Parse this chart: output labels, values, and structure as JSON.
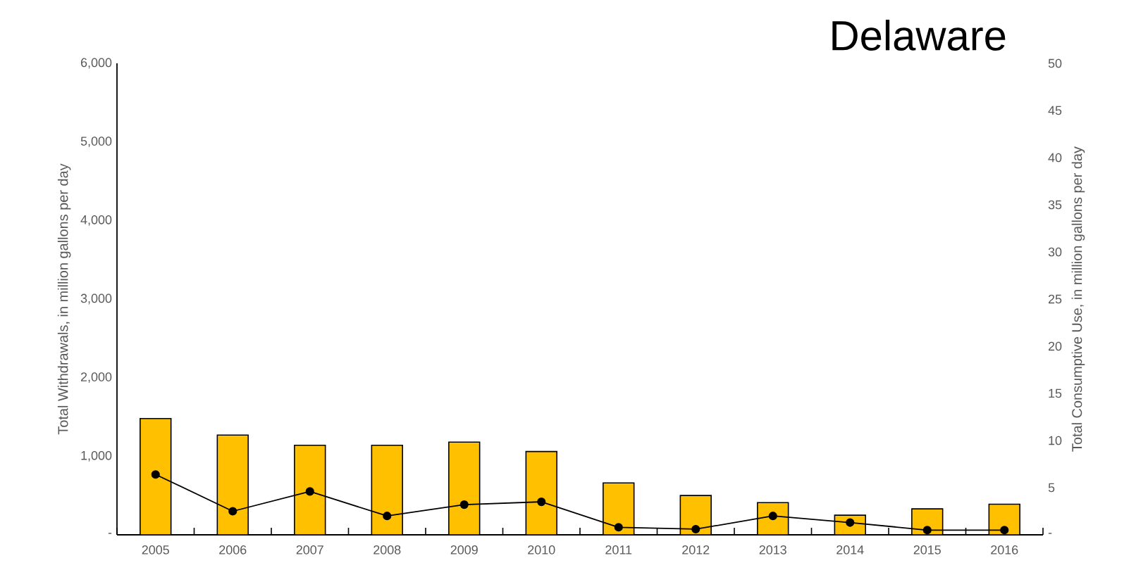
{
  "chart_data": {
    "type": "bar",
    "title": "Delaware",
    "ylabel": "Total Withdrawals, in million gallons per day",
    "y2label": "Total Consumptive Use, in million gallons per day",
    "categories": [
      "2005",
      "2006",
      "2007",
      "2008",
      "2009",
      "2010",
      "2011",
      "2012",
      "2013",
      "2014",
      "2015",
      "2016"
    ],
    "series": [
      {
        "color": "#ffc000",
        "values": [
          1480,
          1270,
          1140,
          1140,
          1180,
          1060,
          660,
          500,
          410,
          250,
          330,
          390
        ]
      },
      {
        "type": "line",
        "axis": "y2",
        "color": "#000000",
        "marker": "circle",
        "values": [
          6.4,
          2.5,
          4.6,
          2.0,
          3.2,
          3.5,
          0.8,
          0.6,
          2.0,
          1.3,
          0.5,
          0.5
        ]
      }
    ],
    "ylim": [
      0,
      6000
    ],
    "yticks": [
      {
        "value": 0,
        "label": "-"
      },
      {
        "value": 1000,
        "label": "1,000"
      },
      {
        "value": 2000,
        "label": "2,000"
      },
      {
        "value": 3000,
        "label": "3,000"
      },
      {
        "value": 4000,
        "label": "4,000"
      },
      {
        "value": 5000,
        "label": "5,000"
      },
      {
        "value": 6000,
        "label": "6,000"
      }
    ],
    "y2lim": [
      0,
      50
    ],
    "y2ticks": [
      {
        "value": 0,
        "label": "-"
      },
      5,
      10,
      15,
      20,
      25,
      30,
      35,
      40,
      45,
      50
    ],
    "grid": false
  }
}
